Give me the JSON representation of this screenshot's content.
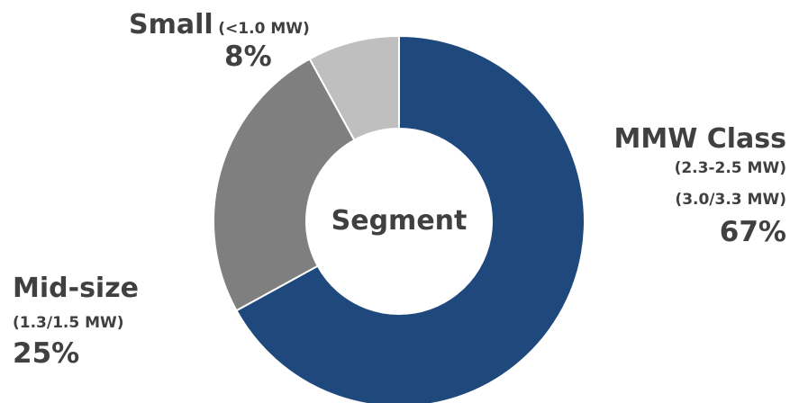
{
  "chart_data": {
    "type": "pie",
    "center_label": "Segment",
    "donut": true,
    "slices": [
      {
        "name": "MMW Class",
        "details": [
          "(2.3-2.5 MW)",
          "(3.0/3.3 MW)"
        ],
        "value": 67,
        "value_label": "67%",
        "color": "#1f497d"
      },
      {
        "name": "Mid-size",
        "details": [
          "(1.3/1.5  MW)"
        ],
        "value": 25,
        "value_label": "25%",
        "color": "#7f7f7f"
      },
      {
        "name": "Small",
        "details": [
          "(<1.0 MW)"
        ],
        "value": 8,
        "value_label": "8%",
        "color": "#bfbfbf"
      }
    ]
  }
}
